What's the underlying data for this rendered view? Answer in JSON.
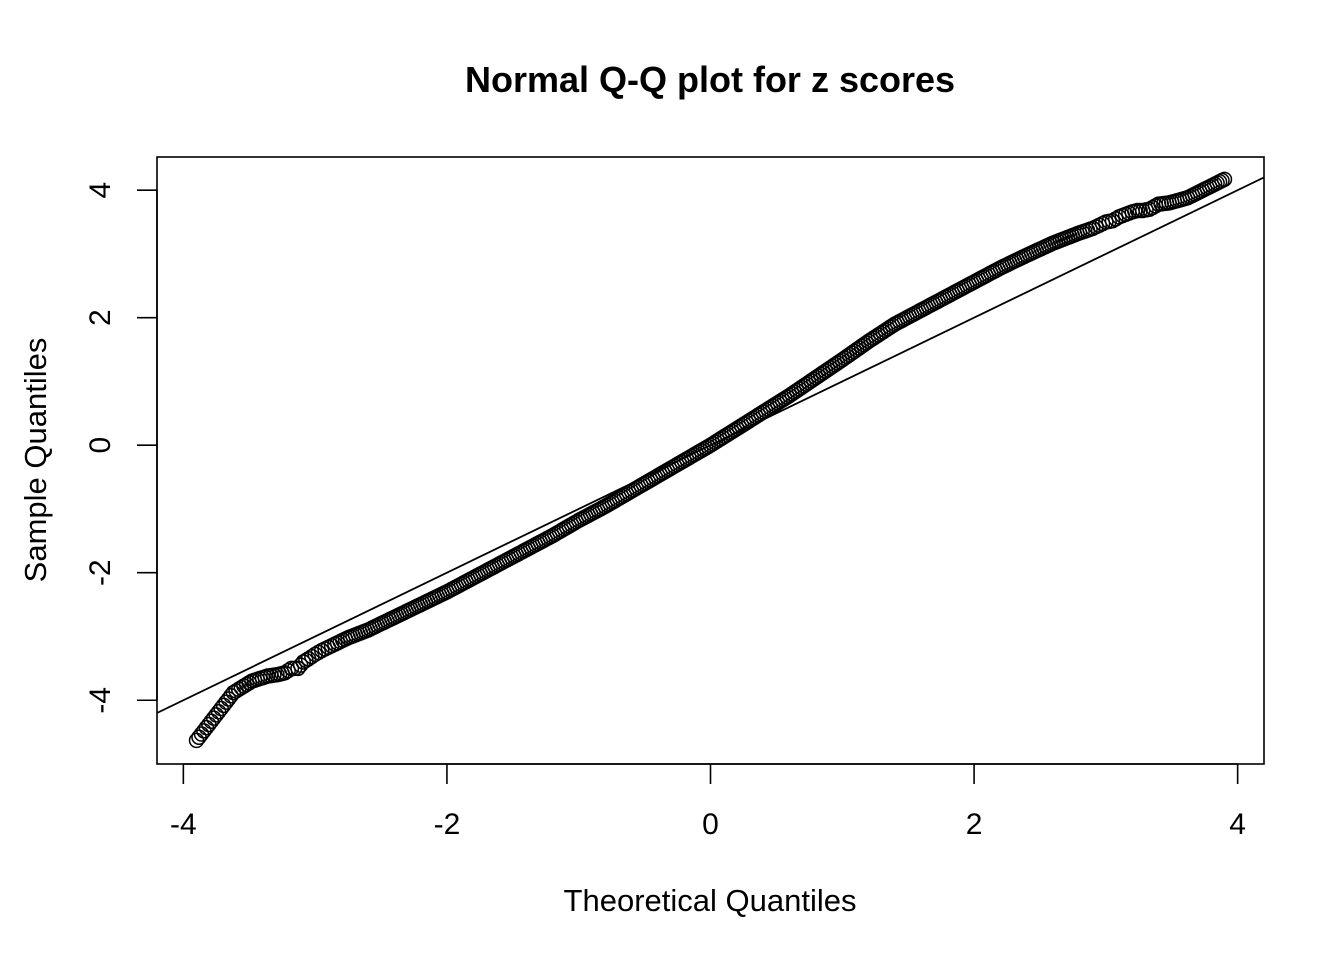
{
  "chart_data": {
    "type": "scatter",
    "title": "Normal Q-Q plot for z scores",
    "xlabel": "Theoretical Quantiles",
    "ylabel": "Sample Quantiles",
    "xlim": [
      -4.2,
      4.2
    ],
    "ylim": [
      -5.0,
      4.52
    ],
    "x_ticks": [
      -4,
      -2,
      0,
      2,
      4
    ],
    "y_ticks": [
      -4,
      -2,
      0,
      2,
      4
    ],
    "grid": false,
    "legend": "none",
    "reference_line": {
      "intercept": 0,
      "slope": 1
    },
    "marker": "open-circle",
    "series_color": "#000000",
    "points": {
      "x": [
        -3.9,
        -3.62,
        -3.48,
        -3.36,
        -3.29,
        -3.23,
        -3.18,
        -3.13,
        -3.09,
        -3.05,
        -3.0,
        -2.95,
        -2.9,
        -2.85,
        -2.75,
        -2.6,
        -2.4,
        -2.2,
        -2.0,
        -1.8,
        -1.6,
        -1.4,
        -1.2,
        -1.0,
        -0.8,
        -0.6,
        -0.4,
        -0.2,
        0.0,
        0.2,
        0.4,
        0.6,
        0.8,
        1.0,
        1.2,
        1.4,
        1.6,
        1.8,
        2.0,
        2.2,
        2.4,
        2.6,
        2.8,
        2.9,
        2.95,
        3.0,
        3.05,
        3.1,
        3.15,
        3.2,
        3.24,
        3.28,
        3.33,
        3.4,
        3.48,
        3.62,
        3.9
      ],
      "y": [
        -4.63,
        -3.88,
        -3.7,
        -3.62,
        -3.6,
        -3.57,
        -3.5,
        -3.5,
        -3.4,
        -3.35,
        -3.28,
        -3.22,
        -3.17,
        -3.12,
        -3.02,
        -2.9,
        -2.7,
        -2.5,
        -2.3,
        -2.08,
        -1.86,
        -1.64,
        -1.42,
        -1.18,
        -0.96,
        -0.72,
        -0.48,
        -0.24,
        0.0,
        0.26,
        0.52,
        0.78,
        1.06,
        1.34,
        1.63,
        1.9,
        2.12,
        2.34,
        2.56,
        2.78,
        2.98,
        3.17,
        3.33,
        3.4,
        3.45,
        3.5,
        3.52,
        3.58,
        3.62,
        3.66,
        3.68,
        3.68,
        3.7,
        3.78,
        3.8,
        3.88,
        4.17
      ]
    }
  }
}
